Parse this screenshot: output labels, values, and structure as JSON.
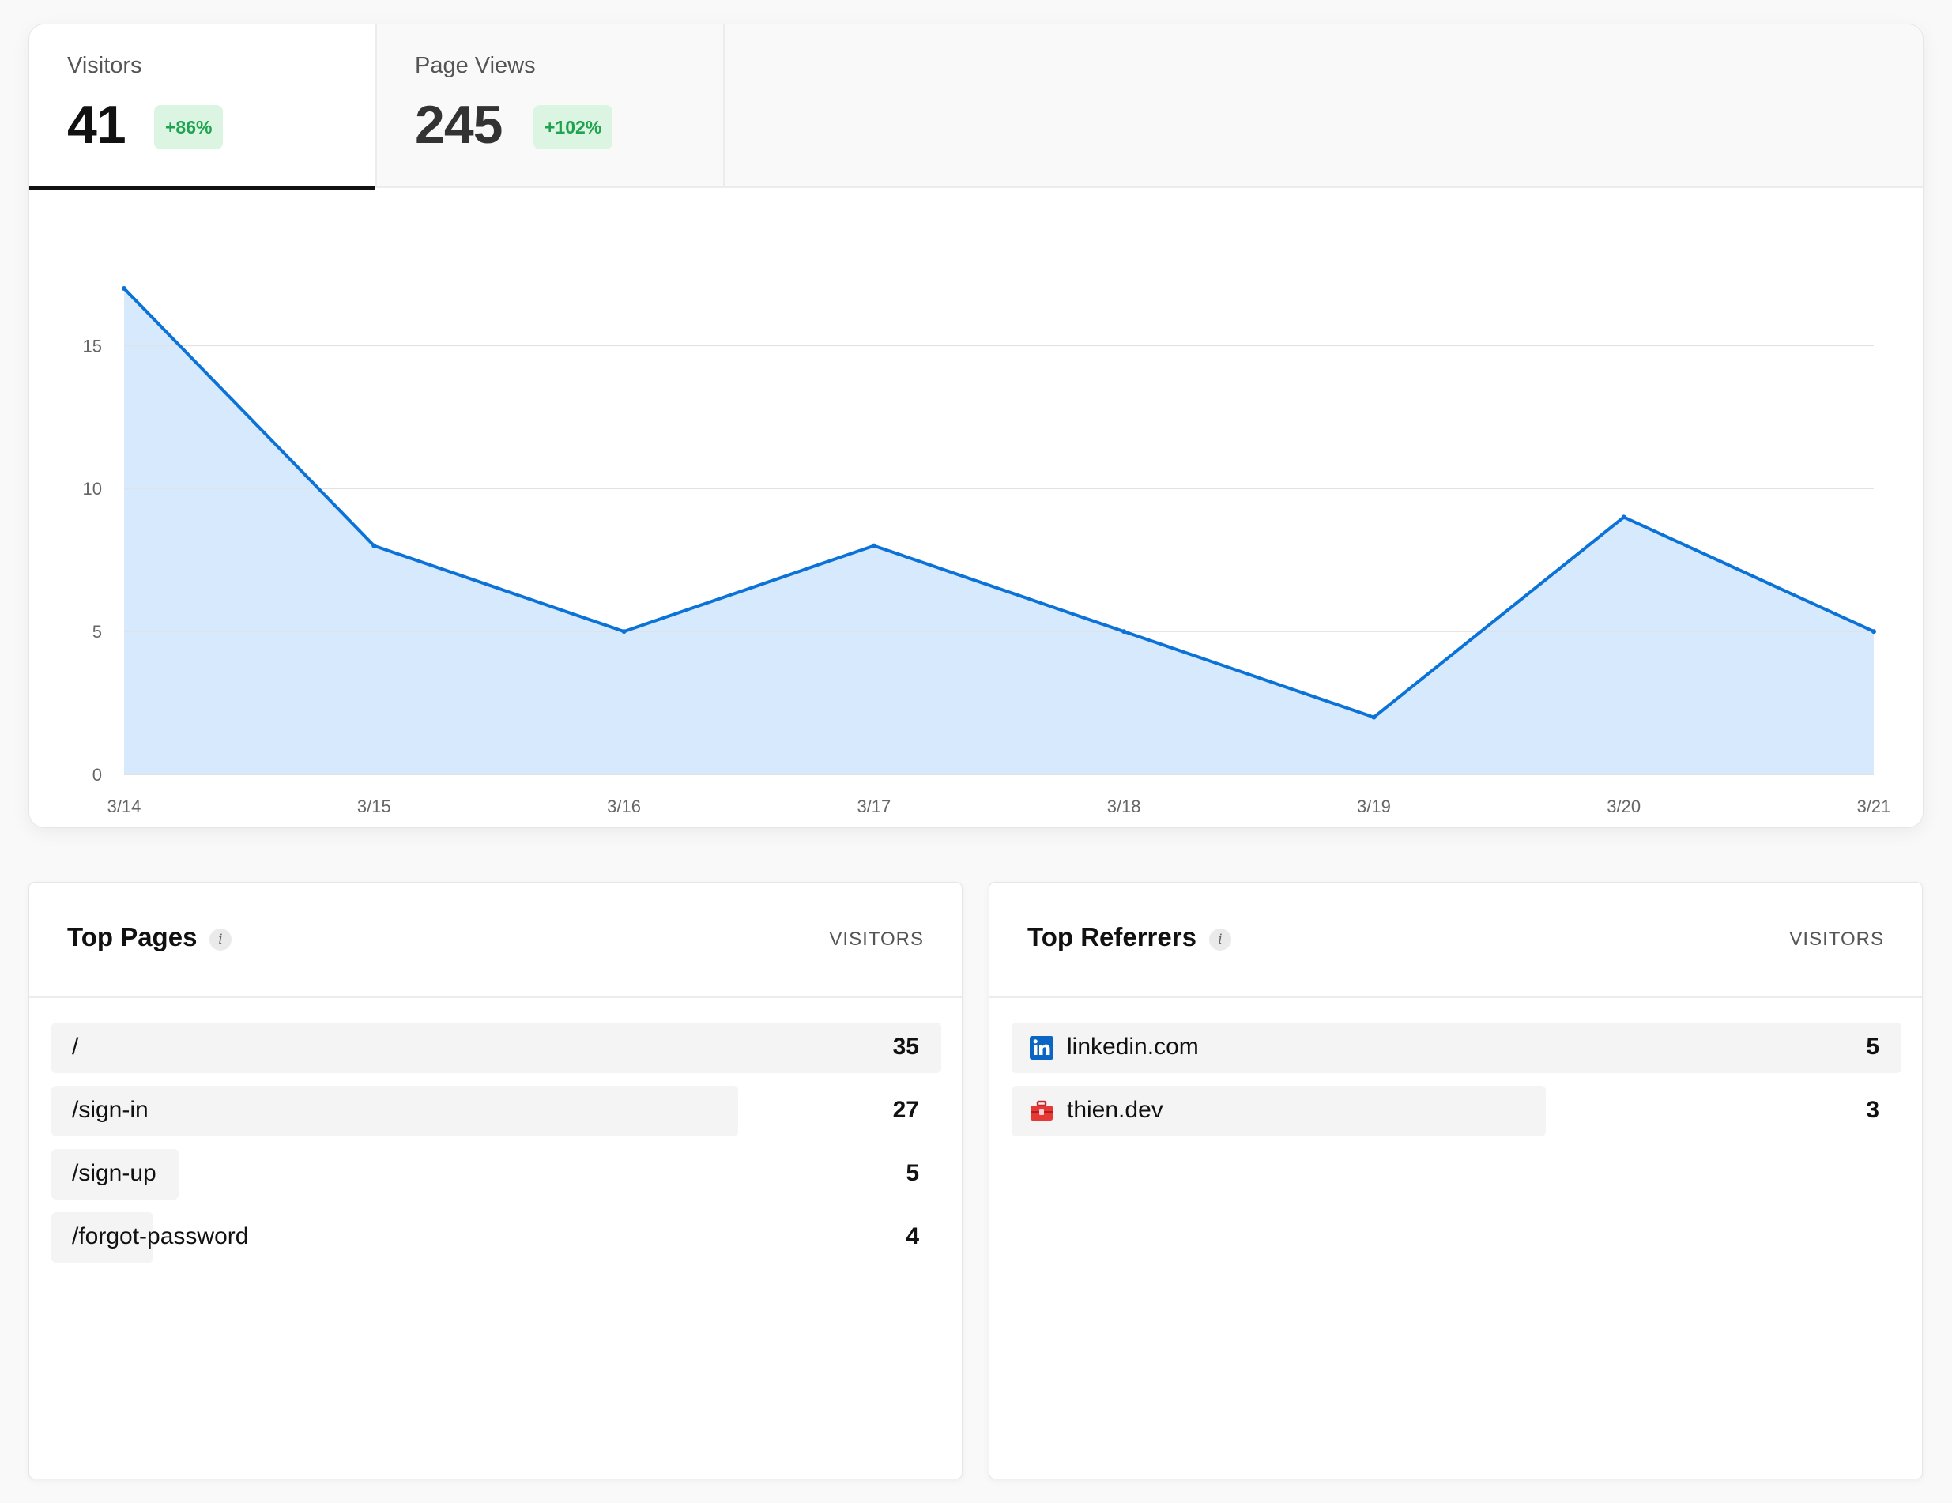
{
  "tabs": [
    {
      "label": "Visitors",
      "value": "41",
      "change": "+86%"
    },
    {
      "label": "Page Views",
      "value": "245",
      "change": "+102%"
    }
  ],
  "chart_data": {
    "type": "area",
    "x": [
      "3/14",
      "3/15",
      "3/16",
      "3/17",
      "3/18",
      "3/19",
      "3/20",
      "3/21"
    ],
    "series": [
      {
        "values": [
          17,
          8,
          5,
          8,
          5,
          2,
          9,
          5
        ]
      }
    ],
    "ylim": [
      0,
      17
    ],
    "yticks": [
      0,
      5,
      10,
      15
    ],
    "grid": true,
    "colors": {
      "line": "#0b72d8",
      "fill": "#d7e9fc"
    }
  },
  "top_pages": {
    "title": "Top Pages",
    "column": "VISITORS",
    "rows": [
      {
        "label": "/",
        "count": "35",
        "value": 35
      },
      {
        "label": "/sign-in",
        "count": "27",
        "value": 27
      },
      {
        "label": "/sign-up",
        "count": "5",
        "value": 5
      },
      {
        "label": "/forgot-password",
        "count": "4",
        "value": 4
      }
    ]
  },
  "top_referrers": {
    "title": "Top Referrers",
    "column": "VISITORS",
    "rows": [
      {
        "label": "linkedin.com",
        "count": "5",
        "value": 5,
        "icon": "linkedin-icon"
      },
      {
        "label": "thien.dev",
        "count": "3",
        "value": 3,
        "icon": "toolbox-icon"
      }
    ]
  }
}
